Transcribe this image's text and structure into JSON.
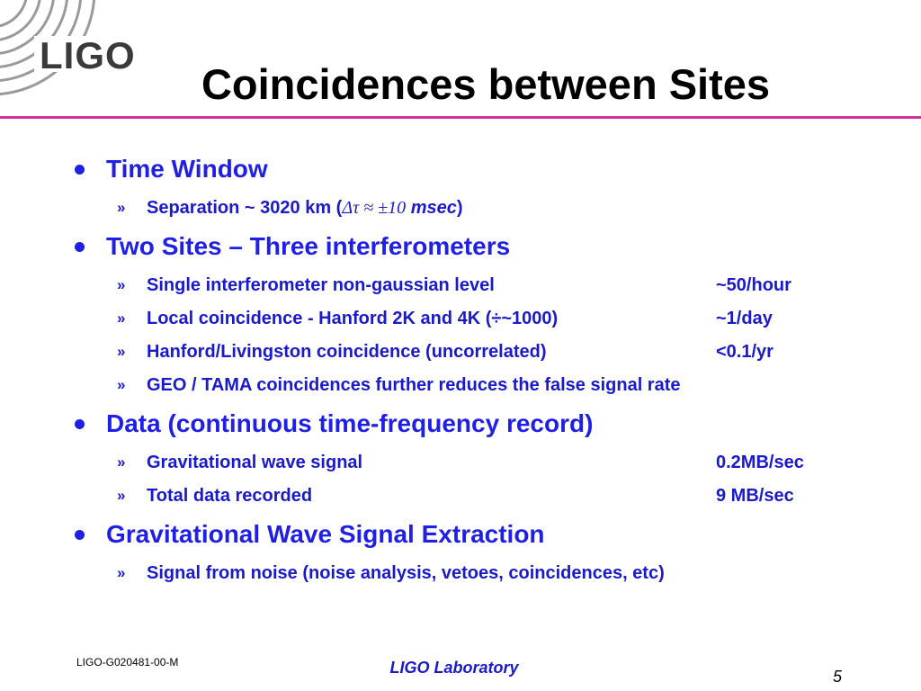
{
  "logo": "LIGO",
  "title": "Coincidences between Sites",
  "sub_marker": "»",
  "sections": [
    {
      "heading": "Time Window",
      "items": [
        {
          "parts": [
            "Separation ~ 3020 km  (",
            "Δτ ≈ ±10",
            " msec",
            ")"
          ]
        }
      ]
    },
    {
      "heading": "Two Sites – Three interferometers",
      "items": [
        {
          "text": "Single interferometer non-gaussian level",
          "value": "~50/hour"
        },
        {
          "text": "Local coincidence - Hanford 2K and 4K (÷~1000)",
          "value": "~1/day"
        },
        {
          "text": "Hanford/Livingston coincidence (uncorrelated)",
          "value": "<0.1/yr"
        },
        {
          "text": "GEO / TAMA coincidences further reduces the false signal rate"
        }
      ]
    },
    {
      "heading": "Data (continuous time-frequency record)",
      "items": [
        {
          "text": "Gravitational wave signal",
          "value": "0.2MB/sec"
        },
        {
          "text": "Total data recorded",
          "value": "9 MB/sec"
        }
      ]
    },
    {
      "heading": "Gravitational Wave Signal Extraction",
      "items": [
        {
          "text": "Signal from noise (noise analysis, vetoes, coincidences, etc)"
        }
      ]
    }
  ],
  "footer": {
    "left": "LIGO-G020481-00-M",
    "center": "LIGO Laboratory",
    "page": "5"
  }
}
